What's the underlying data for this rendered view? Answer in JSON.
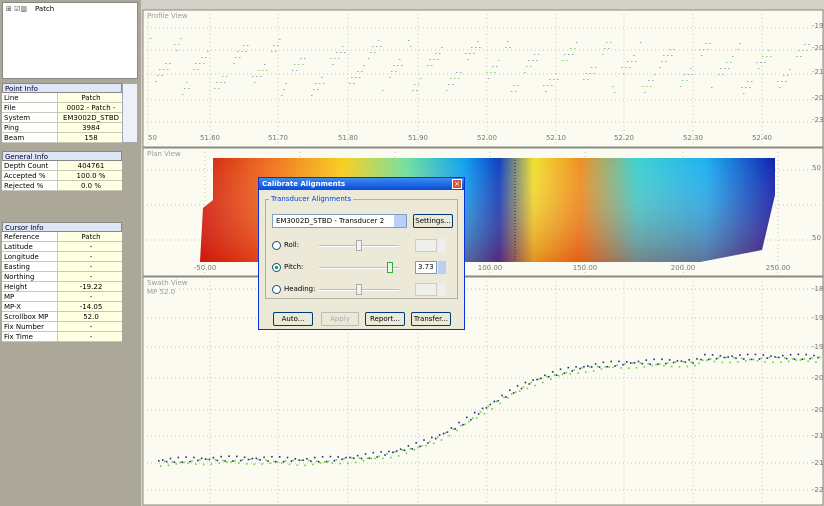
{
  "tree": {
    "item": "Patch"
  },
  "point_info": {
    "title": "Point Info",
    "rows": [
      [
        "Line",
        "Patch"
      ],
      [
        "File",
        "0002 - Patch -"
      ],
      [
        "System",
        "EM3002D_STBD"
      ],
      [
        "Ping",
        "3984"
      ],
      [
        "Beam",
        "158"
      ]
    ]
  },
  "general_info": {
    "title": "General Info",
    "rows": [
      [
        "Depth Count",
        "404761"
      ],
      [
        "Accepted %",
        "100.0 %"
      ],
      [
        "Rejected %",
        "0.0 %"
      ]
    ]
  },
  "cursor_info": {
    "title": "Cursor Info",
    "rows": [
      [
        "Reference",
        "Patch"
      ],
      [
        "Latitude",
        "-"
      ],
      [
        "Longitude",
        "-"
      ],
      [
        "Easting",
        "-"
      ],
      [
        "Northing",
        "-"
      ],
      [
        "Height",
        "-19.22"
      ],
      [
        "MP",
        "-"
      ],
      [
        "MP-X",
        "-14.05"
      ],
      [
        "Scrollbox MP",
        "52.0"
      ],
      [
        "Fix Number",
        "-"
      ],
      [
        "Fix Time",
        "-"
      ]
    ]
  },
  "profile_view": {
    "title": "Profile View",
    "x_labels": [
      "50",
      "51.60",
      "51.70",
      "51.80",
      "51.90",
      "52.00",
      "52.10",
      "52.20",
      "52.30",
      "52.40"
    ],
    "y_labels": [
      "-19",
      "-20",
      "-21",
      "-20",
      "-23"
    ]
  },
  "plan_view": {
    "title": "Plan View",
    "x_labels": [
      "-50.00",
      "100.00",
      "150.00",
      "200.00",
      "250.00"
    ],
    "y_labels": [
      "50",
      "50"
    ]
  },
  "swath_view": {
    "title": "Swath View",
    "subtitle": "MP 52.0",
    "y_labels": [
      "-18",
      "-19",
      "-19",
      "-20",
      "-20",
      "-21",
      "-21",
      "-22"
    ]
  },
  "dialog": {
    "title": "Calibrate Alignments",
    "group": "Transducer Alignments",
    "transducer": "EM3002D_STBD - Transducer 2",
    "settings": "Settings...",
    "roll": "Roll:",
    "pitch": "Pitch:",
    "heading": "Heading:",
    "pitch_value": "3.73",
    "buttons": [
      "Auto...",
      "Apply",
      "Report...",
      "Transfer..."
    ]
  }
}
